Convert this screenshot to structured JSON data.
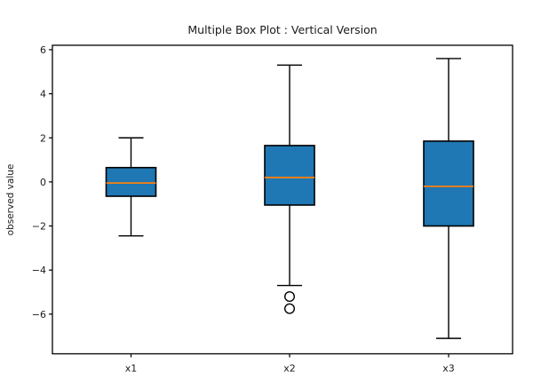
{
  "figure": {
    "background": "#ffffff"
  },
  "chart_data": {
    "type": "boxplot",
    "title": "Multiple Box Plot : Vertical Version",
    "ylabel": "observed value",
    "xlabel": "",
    "categories": [
      "x1",
      "x2",
      "x3"
    ],
    "series": [
      {
        "name": "x1",
        "whisker_low": -2.45,
        "q1": -0.65,
        "median": -0.05,
        "q3": 0.65,
        "whisker_high": 2.0,
        "outliers": []
      },
      {
        "name": "x2",
        "whisker_low": -4.7,
        "q1": -1.05,
        "median": 0.2,
        "q3": 1.65,
        "whisker_high": 5.3,
        "outliers": [
          -5.2,
          -5.75
        ]
      },
      {
        "name": "x3",
        "whisker_low": -7.1,
        "q1": -2.0,
        "median": -0.2,
        "q3": 1.85,
        "whisker_high": 5.6,
        "outliers": []
      }
    ],
    "yticks": [
      6,
      4,
      2,
      0,
      -2,
      -4,
      -6
    ],
    "ylim": [
      -7.8,
      6.2
    ],
    "grid": false,
    "legend": null,
    "colors": {
      "box_fill": "#1f77b4",
      "median_line": "#ff7f0e",
      "line": "#000000",
      "text": "#1a1a1a",
      "background": "#ffffff"
    }
  }
}
